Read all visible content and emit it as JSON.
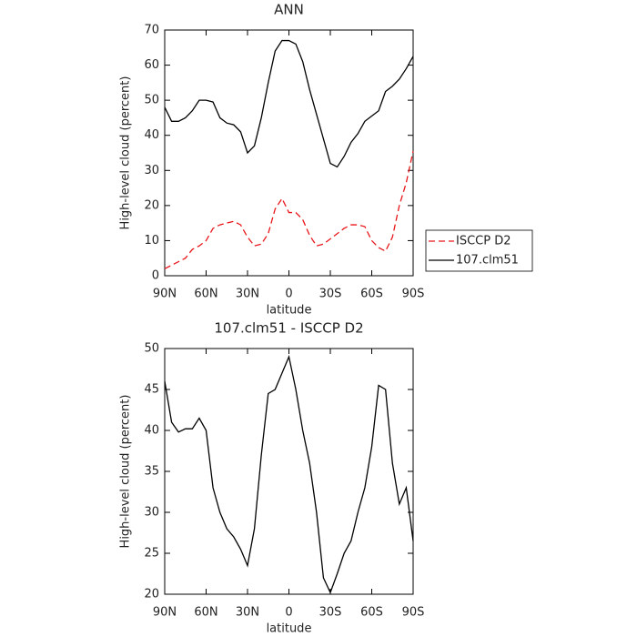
{
  "chart_data": [
    {
      "type": "line",
      "title": "ANN",
      "xlabel": "latitude",
      "ylabel": "High-level cloud (percent)",
      "x": [
        90,
        85,
        80,
        75,
        70,
        65,
        60,
        55,
        50,
        45,
        40,
        35,
        30,
        25,
        20,
        15,
        10,
        5,
        0,
        -5,
        -10,
        -15,
        -20,
        -25,
        -30,
        -35,
        -40,
        -45,
        -50,
        -55,
        -60,
        -65,
        -70,
        -75,
        -80,
        -85,
        -90
      ],
      "series": [
        {
          "name": "ISCCP D2",
          "color": "#e8161b",
          "dash": true,
          "values": [
            2,
            3,
            4,
            5,
            7.5,
            8.5,
            10,
            13.5,
            14.5,
            15,
            15.5,
            14.5,
            11,
            8.5,
            9,
            12,
            19,
            22,
            18,
            18,
            16,
            11.5,
            8.5,
            9,
            10.5,
            12,
            13.5,
            14.5,
            14.5,
            14,
            10,
            8,
            7,
            11,
            20,
            26.5,
            35.5
          ]
        },
        {
          "name": "107.clm51",
          "color": "#000000",
          "dash": false,
          "values": [
            48,
            44,
            44,
            45,
            47,
            50,
            50,
            49.5,
            45,
            43.5,
            43,
            41,
            35,
            37,
            45,
            55,
            64,
            67,
            67,
            66,
            61,
            53,
            46,
            39,
            32,
            31,
            34,
            38,
            40.5,
            44,
            45.5,
            47,
            52.5,
            54,
            56,
            59,
            62.5
          ]
        }
      ],
      "xlim": [
        90,
        -90
      ],
      "xticks": [
        {
          "value": 90,
          "label": "90N"
        },
        {
          "value": 60,
          "label": "60N"
        },
        {
          "value": 30,
          "label": "30N"
        },
        0,
        {
          "value": -30,
          "label": "30S"
        },
        {
          "value": -60,
          "label": "60S"
        },
        {
          "value": -90,
          "label": "90S"
        }
      ],
      "ylim": [
        0,
        70
      ],
      "yticks": [
        0,
        10,
        20,
        30,
        40,
        50,
        60,
        70
      ],
      "legend": "outside-right"
    },
    {
      "type": "line",
      "title": "107.clm51 - ISCCP D2",
      "xlabel": "latitude",
      "ylabel": "High-level cloud (percent)",
      "x": [
        90,
        85,
        80,
        75,
        70,
        65,
        60,
        55,
        50,
        45,
        40,
        35,
        30,
        25,
        20,
        15,
        10,
        5,
        0,
        -5,
        -10,
        -15,
        -20,
        -25,
        -30,
        -35,
        -40,
        -45,
        -50,
        -55,
        -60,
        -65,
        -70,
        -75,
        -80,
        -85,
        -90
      ],
      "series": [
        {
          "color": "#000000",
          "dash": false,
          "values": [
            46,
            41,
            39.8,
            40.2,
            40.2,
            41.5,
            40,
            33,
            30,
            28,
            27,
            25.5,
            23.5,
            28,
            37,
            44.5,
            45,
            47,
            49,
            45,
            40,
            36,
            30,
            22,
            20.2,
            22.5,
            25,
            26.5,
            30,
            33,
            38,
            45.5,
            45,
            36,
            31,
            33,
            26.5
          ]
        }
      ],
      "xlim": [
        90,
        -90
      ],
      "xticks": [
        {
          "value": 90,
          "label": "90N"
        },
        {
          "value": 60,
          "label": "60N"
        },
        {
          "value": 30,
          "label": "30N"
        },
        0,
        {
          "value": -30,
          "label": "30S"
        },
        {
          "value": -60,
          "label": "60S"
        },
        {
          "value": -90,
          "label": "90S"
        }
      ],
      "ylim": [
        20,
        50
      ],
      "yticks": [
        20,
        25,
        30,
        35,
        40,
        45,
        50
      ]
    }
  ]
}
